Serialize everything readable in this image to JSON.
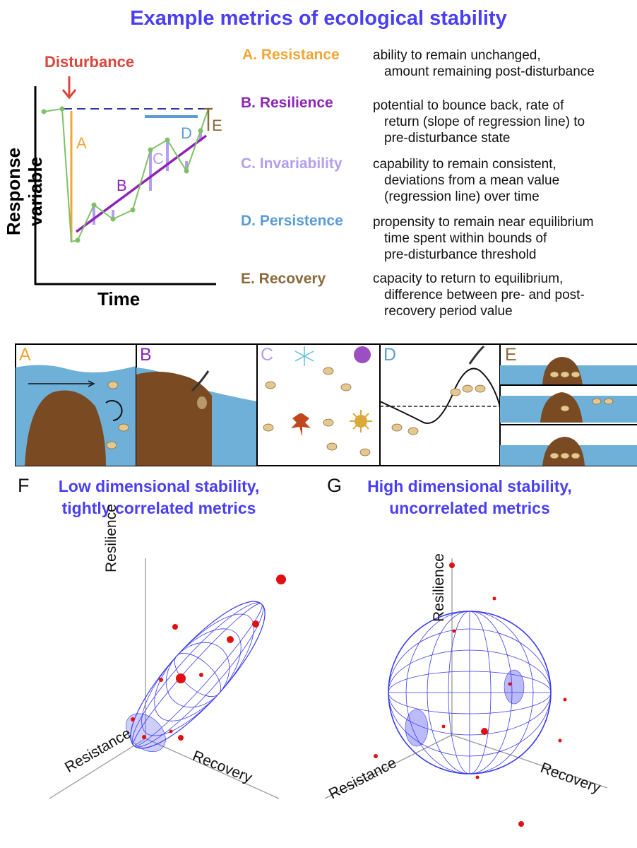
{
  "title": "Example metrics of ecological stability",
  "graph": {
    "disturbance_label": "Disturbance",
    "y_label": "Response variable",
    "x_label": "Time",
    "marks": [
      "A",
      "B",
      "C",
      "D",
      "E"
    ]
  },
  "metrics": [
    {
      "name": "A. Resistance",
      "color": "#f0a63a",
      "lines": [
        "ability to remain unchanged,",
        "amount remaining post-disturbance"
      ]
    },
    {
      "name": "B. Resilience",
      "color": "#8e24b5",
      "lines": [
        "potential to bounce back, rate of",
        "return (slope of regression line) to",
        "pre-disturbance state"
      ]
    },
    {
      "name": "C. Invariability",
      "color": "#b49ef0",
      "lines": [
        "capability to remain consistent,",
        "deviations from a mean value",
        "(regression line) over time"
      ]
    },
    {
      "name": "D. Persistence",
      "color": "#5b9bd5",
      "lines": [
        "propensity to remain near equilibrium",
        "time spent within bounds of",
        "pre-disturbance threshold"
      ]
    },
    {
      "name": "E. Recovery",
      "color": "#8b6a3e",
      "lines": [
        "capacity to return to equilibrium,",
        "difference between pre- and post-",
        "recovery period value"
      ]
    }
  ],
  "panels": {
    "letters": [
      "A",
      "B",
      "C",
      "D",
      "E"
    ]
  },
  "figF": {
    "letter": "F",
    "title_lines": [
      "Low dimensional stability,",
      "tightly correlated metrics"
    ],
    "axes": {
      "vertical": "Resilience",
      "left": "Resistance",
      "right": "Recovery"
    }
  },
  "figG": {
    "letter": "G",
    "title_lines": [
      "High dimensional stability,",
      "uncorrelated metrics"
    ],
    "axes": {
      "vertical": "Resilience",
      "left": "Resistance",
      "right": "Recovery"
    }
  },
  "colors": {
    "title_blue": "#4a3ff2",
    "disturbance_red": "#d9463b",
    "water_blue": "#6fb0d8",
    "rock_brown": "#7a4a22",
    "mesh_blue": "#3b3bf0",
    "point_red": "#e01010"
  }
}
